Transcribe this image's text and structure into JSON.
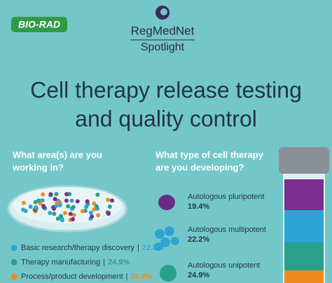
{
  "header": {
    "brand": "BIO-RAD",
    "logo_name": "RegMedNet",
    "logo_sub": "Spotlight"
  },
  "title": {
    "line1": "Cell therapy release testing",
    "line2": "and quality control"
  },
  "left": {
    "question_line1": "What area(s) are you",
    "question_line2": "working in?",
    "items": [
      {
        "label": "Basic research/therapy discovery",
        "value": "22.8%"
      },
      {
        "label": "Therapy manufacturing",
        "value": "24.9%"
      },
      {
        "label": "Process/product development",
        "value": "22.8%"
      }
    ]
  },
  "right": {
    "question_line1": "What type of cell therapy",
    "question_line2": "are you developing?",
    "items": [
      {
        "label": "Autologous pluripotent",
        "value": "19.4%"
      },
      {
        "label": "Autologous multipotent",
        "value": "22.2%"
      },
      {
        "label": "Autologous unipotent",
        "value": "24.9%"
      }
    ]
  }
}
